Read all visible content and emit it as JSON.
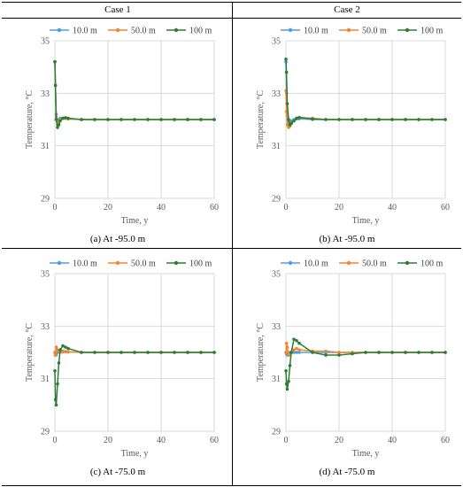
{
  "headers": [
    "Case 1",
    "Case 2"
  ],
  "colors": {
    "10.0 m": "#4d9ee8",
    "50.0 m": "#f0872b",
    "100 m": "#2e7d32"
  },
  "chart_data": [
    {
      "type": "line",
      "caption": "(a) At -95.0 m",
      "xlabel": "Time,  y",
      "ylabel": "Temperature, °C",
      "xlim": [
        0,
        60
      ],
      "ylim": [
        29,
        35
      ],
      "xticks": [
        0,
        20,
        40,
        60
      ],
      "yticks": [
        29,
        31,
        33,
        35
      ],
      "grid": true,
      "legend": "top",
      "series": [
        {
          "name": "10.0 m",
          "x": [
            0,
            0.2,
            0.5,
            1,
            1.5,
            2,
            3,
            4,
            5,
            10,
            15,
            20,
            25,
            30,
            35,
            40,
            45,
            50,
            55,
            60
          ],
          "y": [
            34.2,
            33.3,
            32.2,
            31.9,
            32.0,
            32.05,
            32.05,
            32.05,
            32.02,
            32.0,
            32.0,
            32.0,
            32.0,
            32.0,
            32.0,
            32.0,
            32.0,
            32.0,
            32.0,
            32.0
          ]
        },
        {
          "name": "50.0 m",
          "x": [
            0,
            0.2,
            0.5,
            1,
            1.5,
            2,
            3,
            4,
            5,
            10,
            15,
            20,
            25,
            30,
            35,
            40,
            45,
            50,
            55,
            60
          ],
          "y": [
            34.2,
            33.3,
            32.1,
            31.8,
            31.9,
            32.0,
            32.05,
            32.05,
            32.03,
            32.0,
            32.0,
            32.0,
            32.0,
            32.0,
            32.0,
            32.0,
            32.0,
            32.0,
            32.0,
            32.0
          ]
        },
        {
          "name": "100 m",
          "x": [
            0,
            0.2,
            0.5,
            1,
            1.5,
            2,
            3,
            4,
            5,
            10,
            15,
            20,
            25,
            30,
            35,
            40,
            45,
            50,
            55,
            60
          ],
          "y": [
            34.2,
            33.3,
            32.0,
            31.7,
            31.8,
            31.95,
            32.05,
            32.07,
            32.05,
            32.0,
            32.0,
            32.0,
            32.0,
            32.0,
            32.0,
            32.0,
            32.0,
            32.0,
            32.0,
            32.0
          ]
        }
      ]
    },
    {
      "type": "line",
      "caption": "(b) At -95.0 m",
      "xlabel": "Time,  y",
      "ylabel": "Temperature, °C",
      "xlim": [
        0,
        60
      ],
      "ylim": [
        29,
        35
      ],
      "xticks": [
        0,
        20,
        40,
        60
      ],
      "yticks": [
        29,
        31,
        33,
        35
      ],
      "grid": true,
      "legend": "top",
      "series": [
        {
          "name": "10.0 m",
          "x": [
            0,
            0.2,
            0.5,
            1,
            1.5,
            2,
            3,
            4,
            5,
            10,
            15,
            20,
            25,
            30,
            35,
            40,
            45,
            50,
            55,
            60
          ],
          "y": [
            34.2,
            33.0,
            32.2,
            31.9,
            31.9,
            31.95,
            32.0,
            32.02,
            32.03,
            32.0,
            32.0,
            32.0,
            32.0,
            32.0,
            32.0,
            32.0,
            32.0,
            32.0,
            32.0,
            32.0
          ]
        },
        {
          "name": "50.0 m",
          "x": [
            0,
            0.2,
            0.5,
            1,
            1.5,
            2,
            3,
            4,
            5,
            10,
            15,
            20,
            25,
            30,
            35,
            40,
            45,
            50,
            55,
            60
          ],
          "y": [
            33.1,
            32.3,
            31.8,
            31.7,
            31.75,
            31.85,
            31.95,
            32.05,
            32.08,
            32.05,
            32.0,
            32.0,
            32.0,
            32.0,
            32.0,
            32.0,
            32.0,
            32.0,
            32.0,
            32.0
          ]
        },
        {
          "name": "100 m",
          "x": [
            0,
            0.2,
            0.5,
            1,
            1.5,
            2,
            3,
            4,
            5,
            10,
            15,
            20,
            25,
            30,
            35,
            40,
            45,
            50,
            55,
            60
          ],
          "y": [
            34.3,
            33.8,
            32.6,
            32.0,
            31.8,
            31.85,
            31.95,
            32.05,
            32.08,
            32.02,
            32.0,
            32.0,
            32.0,
            32.0,
            32.0,
            32.0,
            32.0,
            32.0,
            32.0,
            32.0
          ]
        }
      ]
    },
    {
      "type": "line",
      "caption": "(c) At -75.0 m",
      "xlabel": "Time,  y",
      "ylabel": "Temperature, °C",
      "xlim": [
        0,
        60
      ],
      "ylim": [
        29,
        35
      ],
      "xticks": [
        0,
        20,
        40,
        60
      ],
      "yticks": [
        29,
        31,
        33,
        35
      ],
      "grid": true,
      "legend": "top",
      "series": [
        {
          "name": "10.0 m",
          "x": [
            0,
            0.2,
            0.5,
            1,
            1.5,
            2,
            3,
            4,
            5,
            10,
            15,
            20,
            25,
            30,
            35,
            40,
            45,
            50,
            55,
            60
          ],
          "y": [
            32.0,
            31.95,
            31.9,
            32.0,
            32.05,
            32.05,
            32.05,
            32.03,
            32.02,
            32.0,
            32.0,
            32.0,
            32.0,
            32.0,
            32.0,
            32.0,
            32.0,
            32.0,
            32.0,
            32.0
          ]
        },
        {
          "name": "50.0 m",
          "x": [
            0,
            0.2,
            0.5,
            1,
            1.5,
            2,
            3,
            4,
            5,
            10,
            15,
            20,
            25,
            30,
            35,
            40,
            45,
            50,
            55,
            60
          ],
          "y": [
            32.0,
            31.9,
            32.2,
            32.1,
            32.05,
            32.0,
            32.02,
            32.03,
            32.02,
            32.0,
            32.0,
            32.0,
            32.0,
            32.0,
            32.0,
            32.0,
            32.0,
            32.0,
            32.0,
            32.0
          ]
        },
        {
          "name": "100 m",
          "x": [
            0,
            0.2,
            0.5,
            1,
            1.5,
            2,
            3,
            4,
            5,
            10,
            15,
            20,
            25,
            30,
            35,
            40,
            45,
            50,
            55,
            60
          ],
          "y": [
            31.3,
            30.2,
            30.0,
            30.8,
            31.6,
            32.1,
            32.25,
            32.2,
            32.15,
            32.0,
            32.0,
            32.0,
            32.0,
            32.0,
            32.0,
            32.0,
            32.0,
            32.0,
            32.0,
            32.0
          ]
        }
      ]
    },
    {
      "type": "line",
      "caption": "(d) At -75.0 m",
      "xlabel": "Time,  y",
      "ylabel": "Temperature, °C",
      "xlim": [
        0,
        60
      ],
      "ylim": [
        29,
        35
      ],
      "xticks": [
        0,
        20,
        40,
        60
      ],
      "yticks": [
        29,
        31,
        33,
        35
      ],
      "grid": true,
      "legend": "top",
      "series": [
        {
          "name": "10.0 m",
          "x": [
            0,
            0.2,
            0.5,
            1,
            1.5,
            2,
            3,
            4,
            5,
            10,
            15,
            20,
            25,
            30,
            35,
            40,
            45,
            50,
            55,
            60
          ],
          "y": [
            32.0,
            31.95,
            31.9,
            31.95,
            32.0,
            32.0,
            32.0,
            32.0,
            32.0,
            32.0,
            32.0,
            32.0,
            32.0,
            32.0,
            32.0,
            32.0,
            32.0,
            32.0,
            32.0,
            32.0
          ]
        },
        {
          "name": "50.0 m",
          "x": [
            0,
            0.2,
            0.5,
            1,
            1.5,
            2,
            3,
            4,
            5,
            10,
            15,
            20,
            25,
            30,
            35,
            40,
            45,
            50,
            55,
            60
          ],
          "y": [
            32.0,
            32.35,
            32.2,
            31.9,
            31.9,
            32.0,
            32.1,
            32.15,
            32.1,
            32.05,
            32.05,
            32.0,
            32.0,
            32.0,
            32.0,
            32.0,
            32.0,
            32.0,
            32.0,
            32.0
          ]
        },
        {
          "name": "100 m",
          "x": [
            0,
            0.2,
            0.5,
            1,
            1.5,
            2,
            3,
            4,
            5,
            10,
            15,
            20,
            25,
            30,
            35,
            40,
            45,
            50,
            55,
            60
          ],
          "y": [
            31.3,
            30.8,
            30.6,
            30.9,
            31.5,
            32.0,
            32.5,
            32.45,
            32.35,
            32.0,
            31.9,
            31.9,
            31.95,
            32.0,
            32.0,
            32.0,
            32.0,
            32.0,
            32.0,
            32.0
          ]
        }
      ]
    }
  ]
}
